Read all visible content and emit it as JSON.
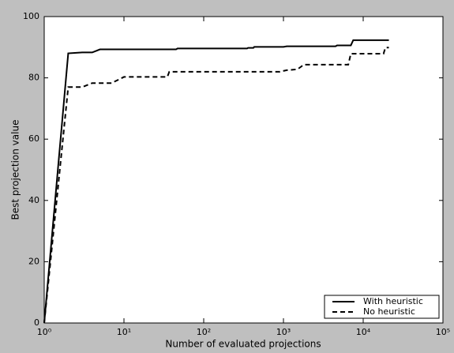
{
  "chart_data": {
    "type": "line",
    "xlabel": "Number of evaluated projections",
    "ylabel": "Best projection value",
    "xscale": "log",
    "xlim": [
      1,
      100000
    ],
    "xticks": [
      {
        "value": 1,
        "label": "10⁰"
      },
      {
        "value": 10,
        "label": "10¹"
      },
      {
        "value": 100,
        "label": "10²"
      },
      {
        "value": 1000,
        "label": "10³"
      },
      {
        "value": 10000,
        "label": "10⁴"
      },
      {
        "value": 100000,
        "label": "10⁵"
      }
    ],
    "ylim": [
      0,
      100
    ],
    "yticks": [
      0,
      20,
      40,
      60,
      80,
      100
    ],
    "legend": "lower right",
    "series": [
      {
        "name": "With heuristic",
        "color": "#000000",
        "dash": "solid",
        "x": [
          1,
          2,
          3,
          4,
          5,
          45,
          47,
          350,
          360,
          420,
          430,
          1000,
          1100,
          4500,
          4700,
          7000,
          7500,
          21000
        ],
        "values": [
          0,
          88,
          88.3,
          88.3,
          89.3,
          89.3,
          89.6,
          89.6,
          89.8,
          89.8,
          90.1,
          90.1,
          90.3,
          90.3,
          90.6,
          90.6,
          92.3,
          92.3
        ]
      },
      {
        "name": "No heuristic",
        "color": "#000000",
        "dash": "dashed",
        "x": [
          1,
          2,
          3,
          4,
          7,
          10,
          35,
          37,
          900,
          1100,
          1500,
          1800,
          6500,
          7000,
          18000,
          19000,
          21000
        ],
        "values": [
          0,
          77,
          77,
          78.3,
          78.3,
          80.3,
          80.3,
          82,
          82,
          82.5,
          82.8,
          84.3,
          84.3,
          87.9,
          87.9,
          89.9,
          89.9
        ]
      }
    ]
  }
}
